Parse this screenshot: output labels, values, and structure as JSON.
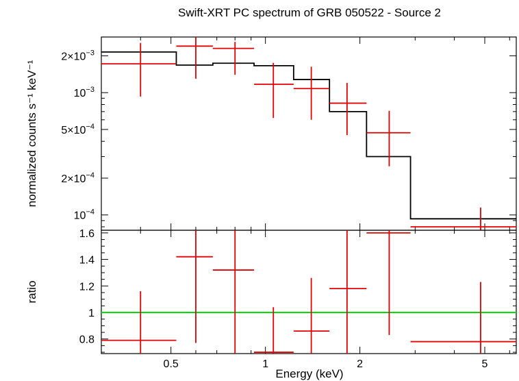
{
  "chart_data": {
    "type": "line",
    "title": "Swift-XRT PC spectrum of GRB 050522 - Source 2",
    "xlabel": "Energy (keV)",
    "x_scale": "log",
    "xlim": [
      0.3,
      6.3
    ],
    "x_ticks": [
      {
        "value": 0.5,
        "label": "0.5"
      },
      {
        "value": 1,
        "label": "1"
      },
      {
        "value": 2,
        "label": "2"
      },
      {
        "value": 5,
        "label": "5"
      }
    ],
    "colors": {
      "data": "#e00000",
      "model": "#000000",
      "unity": "#00dd00"
    },
    "panels": [
      {
        "name": "spectrum",
        "ylabel": "normalized counts s⁻¹ keV⁻¹",
        "y_scale": "log",
        "ylim": [
          7.5e-05,
          0.00285
        ],
        "y_ticks": [
          {
            "value": 0.0001,
            "mant": "10",
            "exp": "−4"
          },
          {
            "value": 0.0002,
            "mant": "2×10",
            "exp": "−4"
          },
          {
            "value": 0.0005,
            "mant": "5×10",
            "exp": "−4"
          },
          {
            "value": 0.001,
            "mant": "10",
            "exp": "−3"
          },
          {
            "value": 0.002,
            "mant": "2×10",
            "exp": "−3"
          }
        ],
        "series": [
          {
            "type": "step",
            "role": "model",
            "bins": [
              {
                "x0": 0.3,
                "x1": 0.52,
                "y": 0.00215
              },
              {
                "x0": 0.52,
                "x1": 0.68,
                "y": 0.00168
              },
              {
                "x0": 0.68,
                "x1": 0.92,
                "y": 0.00174
              },
              {
                "x0": 0.92,
                "x1": 1.23,
                "y": 0.00166
              },
              {
                "x0": 1.23,
                "x1": 1.6,
                "y": 0.00128
              },
              {
                "x0": 1.6,
                "x1": 2.1,
                "y": 0.0007
              },
              {
                "x0": 2.1,
                "x1": 2.9,
                "y": 0.0003
              },
              {
                "x0": 2.9,
                "x1": 6.3,
                "y": 9.3e-05
              }
            ]
          },
          {
            "type": "errorbar",
            "role": "data",
            "points": [
              {
                "x": 0.4,
                "xlo": 0.3,
                "xhi": 0.52,
                "y": 0.00172,
                "ylo": 0.00093,
                "yhi": 0.00255
              },
              {
                "x": 0.6,
                "xlo": 0.52,
                "xhi": 0.68,
                "y": 0.0024,
                "ylo": 0.0013,
                "yhi": 0.00285
              },
              {
                "x": 0.8,
                "xlo": 0.68,
                "xhi": 0.92,
                "y": 0.0023,
                "ylo": 0.0014,
                "yhi": 0.0026
              },
              {
                "x": 1.06,
                "xlo": 0.92,
                "xhi": 1.23,
                "y": 0.00117,
                "ylo": 0.00062,
                "yhi": 0.00175
              },
              {
                "x": 1.4,
                "xlo": 1.23,
                "xhi": 1.6,
                "y": 0.00108,
                "ylo": 0.0006,
                "yhi": 0.00163
              },
              {
                "x": 1.82,
                "xlo": 1.6,
                "xhi": 2.1,
                "y": 0.00082,
                "ylo": 0.00045,
                "yhi": 0.0012
              },
              {
                "x": 2.48,
                "xlo": 2.1,
                "xhi": 2.9,
                "y": 0.00047,
                "ylo": 0.00025,
                "yhi": 0.00071
              },
              {
                "x": 4.85,
                "xlo": 2.9,
                "xhi": 6.3,
                "y": 8e-05,
                "ylo": 7.5e-05,
                "yhi": 0.000115
              }
            ]
          }
        ]
      },
      {
        "name": "ratio",
        "ylabel": "ratio",
        "y_scale": "linear",
        "ylim": [
          0.69,
          1.62
        ],
        "y_ticks": [
          {
            "value": 0.8,
            "label": "0.8"
          },
          {
            "value": 1.0,
            "label": "1"
          },
          {
            "value": 1.2,
            "label": "1.2"
          },
          {
            "value": 1.4,
            "label": "1.4"
          },
          {
            "value": 1.6,
            "label": "1.6"
          }
        ],
        "reference_line": 1.0,
        "series": [
          {
            "type": "errorbar",
            "role": "data",
            "points": [
              {
                "x": 0.4,
                "xlo": 0.3,
                "xhi": 0.52,
                "y": 0.79,
                "ylo": 0.69,
                "yhi": 1.16
              },
              {
                "x": 0.6,
                "xlo": 0.52,
                "xhi": 0.68,
                "y": 1.42,
                "ylo": 0.77,
                "yhi": 1.62
              },
              {
                "x": 0.8,
                "xlo": 0.68,
                "xhi": 0.92,
                "y": 1.32,
                "ylo": 0.69,
                "yhi": 1.62
              },
              {
                "x": 1.06,
                "xlo": 0.92,
                "xhi": 1.23,
                "y": 0.7,
                "ylo": 0.69,
                "yhi": 1.04
              },
              {
                "x": 1.4,
                "xlo": 1.23,
                "xhi": 1.6,
                "y": 0.86,
                "ylo": 0.69,
                "yhi": 1.26
              },
              {
                "x": 1.82,
                "xlo": 1.6,
                "xhi": 2.1,
                "y": 1.18,
                "ylo": 0.69,
                "yhi": 1.62
              },
              {
                "x": 2.48,
                "xlo": 2.1,
                "xhi": 2.9,
                "y": 1.6,
                "ylo": 0.83,
                "yhi": 1.62
              },
              {
                "x": 4.85,
                "xlo": 2.9,
                "xhi": 6.3,
                "y": 0.78,
                "ylo": 0.69,
                "yhi": 1.23
              }
            ]
          }
        ]
      }
    ]
  }
}
